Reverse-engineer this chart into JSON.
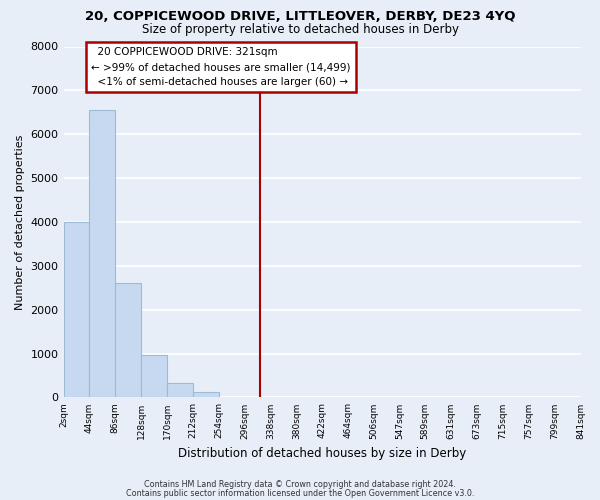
{
  "title": "20, COPPICEWOOD DRIVE, LITTLEOVER, DERBY, DE23 4YQ",
  "subtitle": "Size of property relative to detached houses in Derby",
  "xlabel": "Distribution of detached houses by size in Derby",
  "ylabel": "Number of detached properties",
  "bin_edges": [
    2,
    44,
    86,
    128,
    170,
    212,
    254,
    296,
    338,
    380,
    422,
    464,
    506,
    547,
    589,
    631,
    673,
    715,
    757,
    799,
    841
  ],
  "bar_heights": [
    4000,
    6560,
    2620,
    970,
    330,
    130,
    0,
    0,
    0,
    0,
    0,
    0,
    0,
    0,
    0,
    0,
    0,
    0,
    0,
    0
  ],
  "bar_color": "#c6d9f0",
  "bar_edgecolor": "#9dbcd4",
  "property_line_x": 321,
  "property_line_color": "#aa0000",
  "annotation_title": "20 COPPICEWOOD DRIVE: 321sqm",
  "annotation_line1": "← >99% of detached houses are smaller (14,499)",
  "annotation_line2": "<1% of semi-detached houses are larger (60) →",
  "ylim": [
    0,
    8000
  ],
  "yticks": [
    0,
    1000,
    2000,
    3000,
    4000,
    5000,
    6000,
    7000,
    8000
  ],
  "tick_labels": [
    "2sqm",
    "44sqm",
    "86sqm",
    "128sqm",
    "170sqm",
    "212sqm",
    "254sqm",
    "296sqm",
    "338sqm",
    "380sqm",
    "422sqm",
    "464sqm",
    "506sqm",
    "547sqm",
    "589sqm",
    "631sqm",
    "673sqm",
    "715sqm",
    "757sqm",
    "799sqm",
    "841sqm"
  ],
  "footer_line1": "Contains HM Land Registry data © Crown copyright and database right 2024.",
  "footer_line2": "Contains public sector information licensed under the Open Government Licence v3.0.",
  "background_color": "#e8eef8",
  "grid_color": "#ffffff"
}
